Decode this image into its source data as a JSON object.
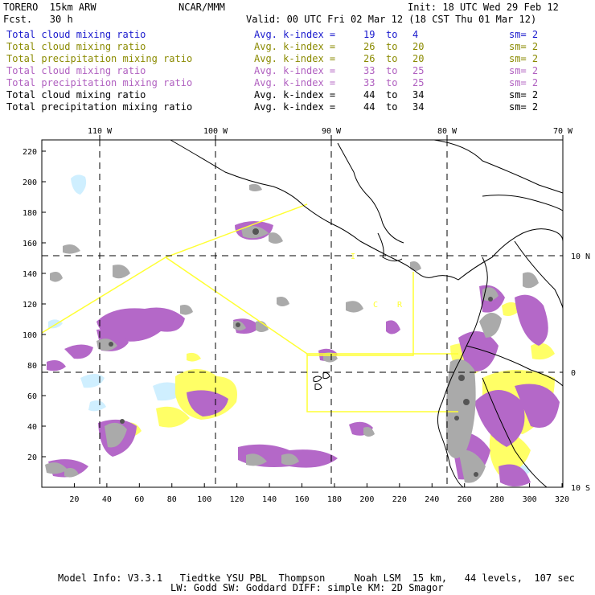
{
  "header": {
    "model": "TORERO  15km ARW",
    "org": "NCAR/MMM",
    "init": "Init: 18 UTC Wed 29 Feb 12",
    "fcst": "Fcst.   30 h",
    "valid": "Valid: 00 UTC Fri 02 Mar 12 (18 CST Thu 01 Mar 12)"
  },
  "legend": [
    {
      "field": "Total cloud mixing ratio",
      "index": "Avg. k-index =",
      "from": "19",
      "to_word": "to",
      "to": "4",
      "sm": "sm= 2",
      "color": "#1a1acd"
    },
    {
      "field": "Total cloud mixing ratio",
      "index": "Avg. k-index =",
      "from": "26",
      "to_word": "to",
      "to": "20",
      "sm": "sm= 2",
      "color": "#8a8a00"
    },
    {
      "field": "Total precipitation mixing ratio",
      "index": "Avg. k-index =",
      "from": "26",
      "to_word": "to",
      "to": "20",
      "sm": "sm= 2",
      "color": "#8a8a00"
    },
    {
      "field": "Total cloud mixing ratio",
      "index": "Avg. k-index =",
      "from": "33",
      "to_word": "to",
      "to": "25",
      "sm": "sm= 2",
      "color": "#b060c0"
    },
    {
      "field": "Total precipitation mixing ratio",
      "index": "Avg. k-index =",
      "from": "33",
      "to_word": "to",
      "to": "25",
      "sm": "sm= 2",
      "color": "#b060c0"
    },
    {
      "field": "Total cloud mixing ratio",
      "index": "Avg. k-index =",
      "from": "44",
      "to_word": "to",
      "to": "34",
      "sm": "sm= 2",
      "color": "#000000"
    },
    {
      "field": "Total precipitation mixing ratio",
      "index": "Avg. k-index =",
      "from": "44",
      "to_word": "to",
      "to": "34",
      "sm": "sm= 2",
      "color": "#000000"
    }
  ],
  "map": {
    "x_ticks": [
      "20",
      "40",
      "60",
      "80",
      "100",
      "120",
      "140",
      "160",
      "180",
      "200",
      "220",
      "240",
      "260",
      "280",
      "300",
      "320"
    ],
    "y_ticks": [
      "20",
      "40",
      "60",
      "80",
      "100",
      "120",
      "140",
      "160",
      "180",
      "200",
      "220"
    ],
    "lon_labels": [
      "110 W",
      "100 W",
      "90 W",
      "80 W",
      "70 W"
    ],
    "lat_labels": [
      "10 N",
      "0",
      "10 S"
    ],
    "inner_labels": [
      "C",
      "R",
      "I"
    ],
    "colors": {
      "land": "#000000",
      "box": "#ffff33",
      "grid": "#000000",
      "cloud_light": "#cfefff",
      "cloud_yellow": "#ffff66",
      "cloud_purple": "#b468c8",
      "cloud_gray": "#aaaaaa"
    }
  },
  "footer": {
    "line1": "Model Info: V3.3.1   Tiedtke YSU PBL  Thompson     Noah LSM  15 km,   44 levels,  107 sec",
    "line2": "LW: Godd SW: Goddard DIFF: simple KM: 2D Smagor"
  }
}
